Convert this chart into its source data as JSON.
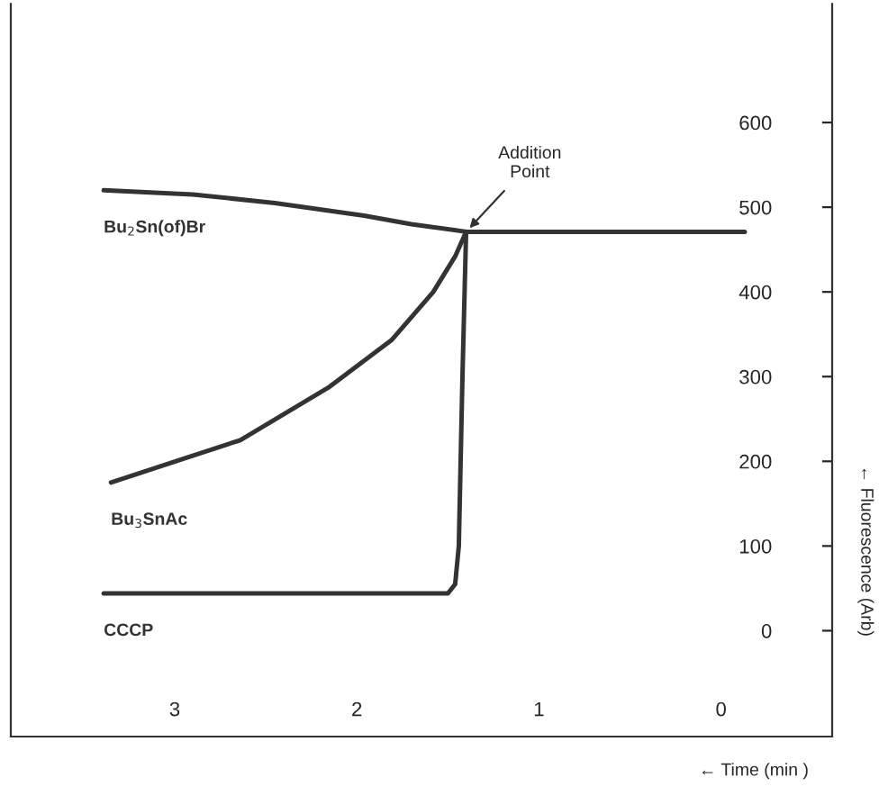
{
  "chart_data": {
    "type": "line",
    "xlabel": "← Time (min )",
    "ylabel": "← Fluorescence (Arb)",
    "xlim": [
      3.9,
      -0.61
    ],
    "xticks": [
      3,
      2,
      1,
      0
    ],
    "ylim": [
      -125,
      740
    ],
    "yticks": [
      0,
      100,
      200,
      300,
      400,
      500,
      600
    ],
    "legend": false,
    "grid": false,
    "marker": "none",
    "line_style": "solid",
    "series": [
      {
        "name": "Bu$_{2}$Sn(of)Br",
        "color": "#333333",
        "x": [
          3.39,
          2.9,
          2.45,
          1.96,
          1.7,
          1.4,
          1.0,
          0.5,
          -0.13
        ],
        "values": [
          520,
          515,
          505,
          490,
          480,
          471,
          471,
          471,
          471
        ]
      },
      {
        "name": "Bu$_{3}$SnAc",
        "color": "#333333",
        "x": [
          3.35,
          2.64,
          2.15,
          1.81,
          1.58,
          1.46,
          1.4
        ],
        "values": [
          175,
          225,
          288,
          343,
          400,
          442,
          471
        ]
      },
      {
        "name": "CCCP",
        "color": "#333333",
        "x": [
          3.39,
          2.5,
          1.5,
          1.46,
          1.44,
          1.42,
          1.4
        ],
        "values": [
          44,
          44,
          44,
          55,
          100,
          300,
          471
        ]
      }
    ],
    "annotations": [
      {
        "text": "Addition\nPoint",
        "x": 1.4,
        "y": 471
      }
    ]
  }
}
